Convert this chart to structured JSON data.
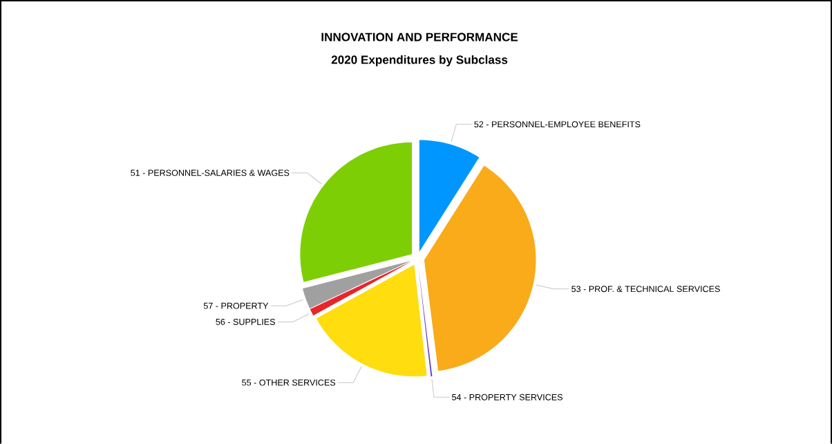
{
  "chart_data": {
    "type": "pie",
    "title": "INNOVATION AND PERFORMANCE",
    "subtitle": "2020 Expenditures by Subclass",
    "categories": [
      "52 - PERSONNEL-EMPLOYEE BENEFITS",
      "53 - PROF. & TECHNICAL SERVICES",
      "54 - PROPERTY SERVICES",
      "55 - OTHER SERVICES",
      "56 - SUPPLIES",
      "57 - PROPERTY",
      "51 - PERSONNEL-SALARIES & WAGES"
    ],
    "values": [
      9,
      39,
      0.2,
      18.8,
      1,
      3,
      29
    ],
    "colors": [
      "#0096ff",
      "#f9ab1a",
      "#6a3cc8",
      "#ffdd0e",
      "#e8262a",
      "#a0a0a0",
      "#7dce05"
    ]
  }
}
